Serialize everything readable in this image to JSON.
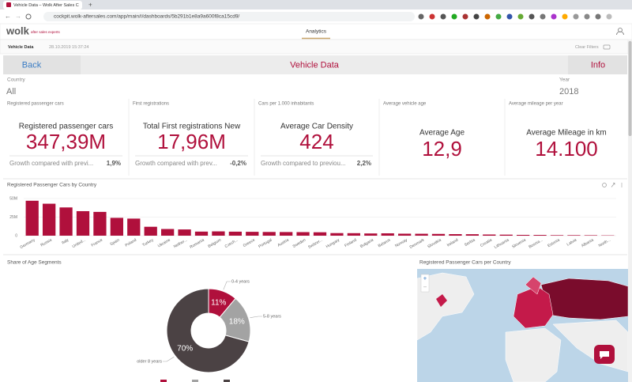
{
  "browser": {
    "tab_title": "Vehicle Data – Wolk After Sales C",
    "url": "cockpit.wolk-aftersales.com/app/main#/dashboards/5b291b1e8a9a600f8ca15cd9/"
  },
  "app": {
    "logo": "wolk",
    "logo_sub": "after sales experts",
    "nav": "Analytics",
    "page": "Vehicle Data",
    "timestamp": "28.10.2019 15:37:24",
    "clear_filters": "Clear Filters"
  },
  "toolbar": {
    "back": "Back",
    "title": "Vehicle Data",
    "info": "Info"
  },
  "filters": [
    {
      "label": "Country",
      "value": "All"
    },
    {
      "label": "Year",
      "value": "2018"
    }
  ],
  "kpis": [
    {
      "label": "Registered passenger cars",
      "title": "Registered passenger cars",
      "value": "347,39M",
      "growth_label": "Growth compared with previ...",
      "growth": "1,9%"
    },
    {
      "label": "First registrations",
      "title": "Total First registrations New",
      "value": "17,96M",
      "growth_label": "Growth compared with prev...",
      "growth": "-0,2%"
    },
    {
      "label": "Cars per 1.000 inhabitants",
      "title": "Average Car Density",
      "value": "424",
      "growth_label": "Growth compared to previou...",
      "growth": "2,2%"
    },
    {
      "label": "Average vehicle age",
      "title": "Average Age",
      "value": "12,9"
    },
    {
      "label": "Average mileage per year",
      "title": "Average Mileage in km",
      "value": "14.100"
    }
  ],
  "bar_chart": {
    "type": "bar",
    "title": "Registered Passenger Cars by Country",
    "categories": [
      "Germany",
      "Russia",
      "Italy",
      "United...",
      "France",
      "Spain",
      "Poland",
      "Turkey",
      "Ukraine",
      "Nether...",
      "Romania",
      "Belgium",
      "Czech...",
      "Greece",
      "Portugal",
      "Austria",
      "Sweden",
      "Switzer...",
      "Hungary",
      "Finland",
      "Bulgaria",
      "Belarus",
      "Norway",
      "Denmark",
      "Slovakia",
      "Ireland",
      "Serbia",
      "Croatia",
      "Lithuania",
      "Slovenia",
      "Bosnia...",
      "Estonia",
      "Latvia",
      "Albania",
      "North..."
    ],
    "values": [
      47,
      43,
      38,
      33,
      32,
      24,
      23,
      12,
      9,
      8.4,
      5.5,
      5.8,
      5.4,
      5.2,
      5,
      4.9,
      4.8,
      4.6,
      3.5,
      3.4,
      3,
      3.2,
      2.7,
      2.6,
      2.4,
      2.1,
      2,
      1.6,
      1.4,
      1.1,
      1,
      0.7,
      0.7,
      0.6,
      0.4
    ],
    "color": "#b0103c",
    "ylim": [
      0,
      55
    ],
    "yticks": [
      0,
      {
        "value": 25,
        "label": "25M"
      },
      {
        "value": 50,
        "label": "50M"
      }
    ],
    "grid": true
  },
  "donut_chart": {
    "type": "pie",
    "title": "Share of Age Segments",
    "categories": [
      "0-4 years",
      "5-8 years",
      "older 8 years"
    ],
    "values": [
      11,
      18,
      70
    ],
    "value_labels": [
      "11%",
      "18%",
      "70%"
    ],
    "colors": [
      "#b0103c",
      "#a3a3a3",
      "#4b4244"
    ]
  },
  "map": {
    "title": "Registered Passenger Cars per Country",
    "zoom_in": "+",
    "zoom_out": "−"
  }
}
